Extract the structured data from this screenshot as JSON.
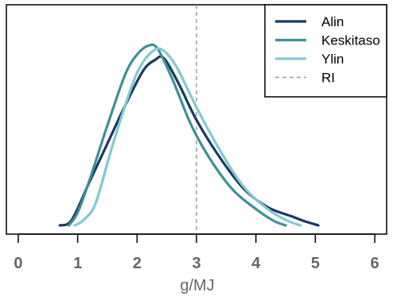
{
  "chart_data": {
    "type": "line",
    "xlabel": "g/MJ",
    "ylabel": "",
    "xlim": [
      -0.2,
      6.2
    ],
    "ylim": [
      0,
      1.0
    ],
    "xticks": [
      0,
      1,
      2,
      3,
      4,
      5,
      6
    ],
    "legend": {
      "placement": "top-right",
      "items": [
        "Alin",
        "Keskitaso",
        "Ylin",
        "RI"
      ]
    },
    "colors": {
      "Alin": "#183a63",
      "Keskitaso": "#3e9097",
      "Ylin": "#81c9d1",
      "RI": "#9a9a9a",
      "axis": "#000000",
      "text": "#666666"
    },
    "reference_line": {
      "name": "RI",
      "x": 3.0,
      "style": "dashed"
    },
    "series": [
      {
        "name": "Alin",
        "x": [
          0.7,
          0.9,
          1.2,
          1.5,
          1.8,
          2.1,
          2.3,
          2.45,
          2.7,
          3.0,
          3.4,
          3.8,
          4.2,
          4.6,
          4.8,
          5.05
        ],
        "values": [
          0.0,
          0.03,
          0.24,
          0.45,
          0.66,
          0.85,
          0.91,
          0.92,
          0.78,
          0.58,
          0.37,
          0.2,
          0.1,
          0.05,
          0.025,
          0.0
        ]
      },
      {
        "name": "Keskitaso",
        "x": [
          0.85,
          1.0,
          1.2,
          1.5,
          1.8,
          2.0,
          2.2,
          2.35,
          2.6,
          2.9,
          3.2,
          3.6,
          4.0,
          4.3,
          4.5
        ],
        "values": [
          0.0,
          0.07,
          0.25,
          0.55,
          0.83,
          0.94,
          0.99,
          0.97,
          0.8,
          0.56,
          0.38,
          0.2,
          0.09,
          0.025,
          0.0
        ]
      },
      {
        "name": "Ylin",
        "x": [
          0.95,
          1.1,
          1.3,
          1.55,
          1.8,
          2.0,
          2.2,
          2.4,
          2.65,
          3.0,
          3.4,
          3.8,
          4.2,
          4.5,
          4.75
        ],
        "values": [
          0.0,
          0.03,
          0.12,
          0.4,
          0.66,
          0.84,
          0.94,
          0.97,
          0.88,
          0.65,
          0.41,
          0.21,
          0.09,
          0.03,
          0.0
        ]
      }
    ]
  }
}
